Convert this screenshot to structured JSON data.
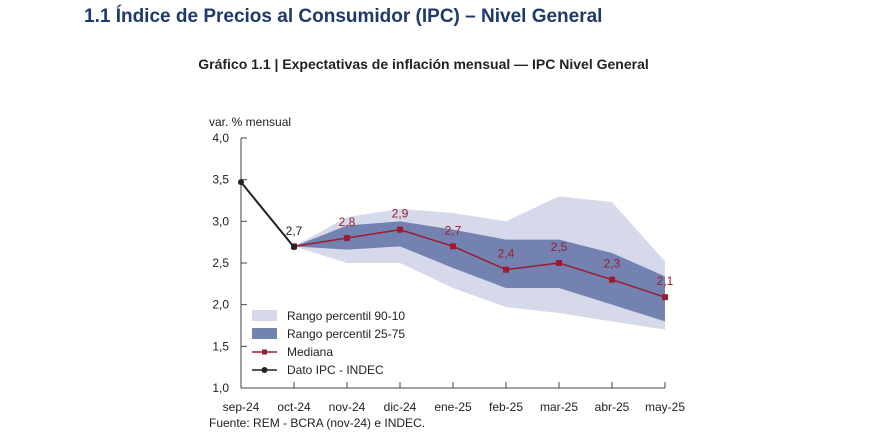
{
  "header": {
    "title": "1.1 Índice de Precios al Consumidor (IPC) – Nivel General"
  },
  "chart_data": {
    "type": "line",
    "title": "Gráfico 1.1 | Expectativas de inflación mensual — IPC Nivel General",
    "ylabel": "var. % mensual",
    "ylim": [
      1.0,
      4.0
    ],
    "yticks": [
      "1,0",
      "1,5",
      "2,0",
      "2,5",
      "3,0",
      "3,5",
      "4,0"
    ],
    "ytick_values": [
      1.0,
      1.5,
      2.0,
      2.5,
      3.0,
      3.5,
      4.0
    ],
    "categories": [
      "sep-24",
      "oct-24",
      "nov-24",
      "dic-24",
      "ene-25",
      "feb-25",
      "mar-25",
      "abr-25",
      "may-25"
    ],
    "series": [
      {
        "name": "Rango percentil 90-10",
        "type": "band",
        "color": "#d5d9ea",
        "low": [
          null,
          2.7,
          2.5,
          2.5,
          2.2,
          1.97,
          1.9,
          1.8,
          1.7
        ],
        "high": [
          null,
          2.7,
          3.05,
          3.15,
          3.1,
          3.0,
          3.3,
          3.23,
          2.52
        ]
      },
      {
        "name": "Rango percentil 25-75",
        "type": "band",
        "color": "#7482b2",
        "low": [
          null,
          2.7,
          2.66,
          2.7,
          2.44,
          2.2,
          2.2,
          2.0,
          1.8
        ],
        "high": [
          null,
          2.7,
          2.95,
          3.0,
          2.9,
          2.78,
          2.78,
          2.62,
          2.34
        ]
      },
      {
        "name": "Mediana",
        "type": "line",
        "color": "#9b1b30",
        "values": [
          null,
          2.7,
          2.8,
          2.9,
          2.7,
          2.42,
          2.5,
          2.3,
          2.09
        ],
        "labels": [
          null,
          null,
          "2,8",
          "2,9",
          "2,7",
          "2,4",
          "2,5",
          "2,3",
          "2,1"
        ]
      },
      {
        "name": "Dato IPC - INDEC",
        "type": "line",
        "color": "#222222",
        "values": [
          3.47,
          2.69,
          null,
          null,
          null,
          null,
          null,
          null,
          null
        ],
        "labels": [
          null,
          "2,7",
          null,
          null,
          null,
          null,
          null,
          null,
          null
        ]
      }
    ],
    "legend": "bottom-left",
    "source": "Fuente: REM - BCRA (nov-24) e INDEC."
  }
}
